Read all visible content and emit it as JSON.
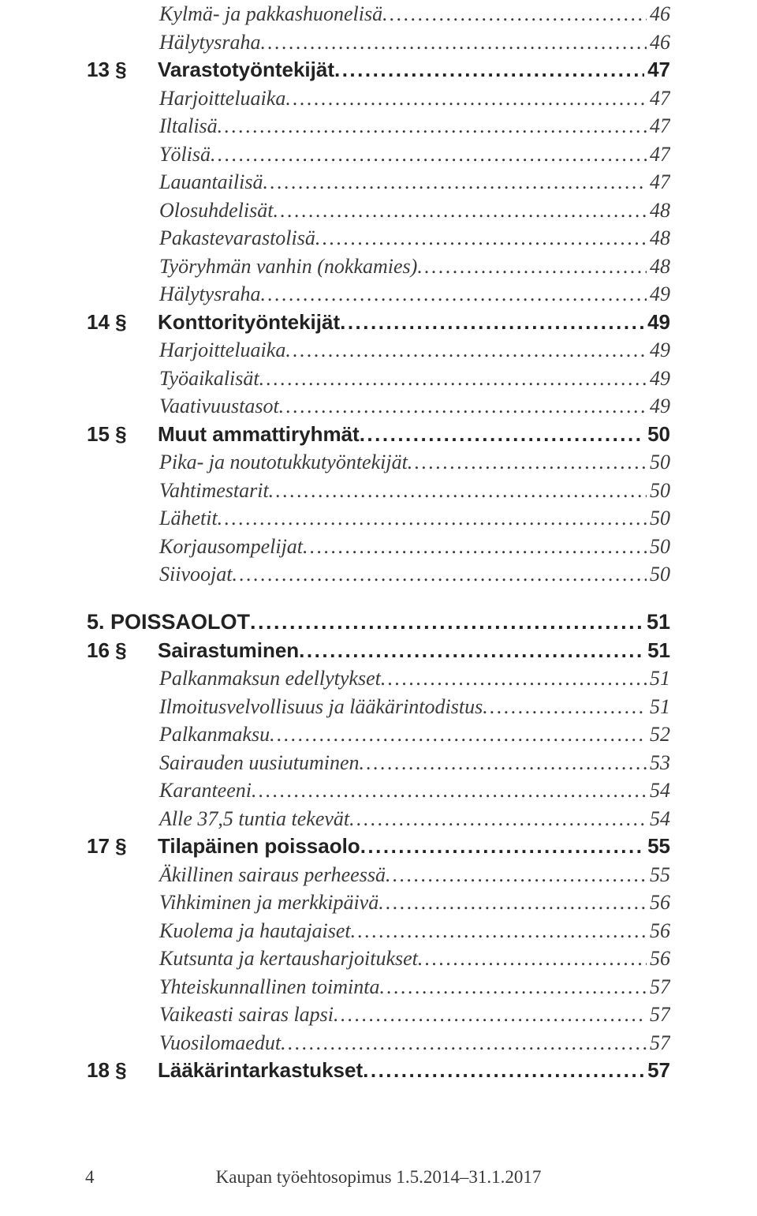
{
  "footer": {
    "pagenum": "4",
    "text": "Kaupan työehtosopimus 1.5.2014–31.1.2017"
  },
  "toc": [
    {
      "kind": "sub",
      "label": "Kylmä- ja pakkashuonelisä",
      "page": "46"
    },
    {
      "kind": "sub",
      "label": "Hälytysraha",
      "page": "46"
    },
    {
      "kind": "sec",
      "num": "13 §",
      "label": "Varastotyöntekijät",
      "page": "47"
    },
    {
      "kind": "sub",
      "label": "Harjoitteluaika",
      "page": "47"
    },
    {
      "kind": "sub",
      "label": "Iltalisä",
      "page": "47"
    },
    {
      "kind": "sub",
      "label": "Yölisä",
      "page": "47"
    },
    {
      "kind": "sub",
      "label": "Lauantailisä",
      "page": "47"
    },
    {
      "kind": "sub",
      "label": "Olosuhdelisät",
      "page": "48"
    },
    {
      "kind": "sub",
      "label": "Pakastevarastolisä",
      "page": "48"
    },
    {
      "kind": "sub",
      "label": "Työryhmän vanhin (nokkamies)",
      "page": "48"
    },
    {
      "kind": "sub",
      "label": "Hälytysraha",
      "page": "49"
    },
    {
      "kind": "sec",
      "num": "14 §",
      "label": "Konttorityöntekijät",
      "page": "49"
    },
    {
      "kind": "sub",
      "label": "Harjoitteluaika",
      "page": "49"
    },
    {
      "kind": "sub",
      "label": "Työaikalisät",
      "page": "49"
    },
    {
      "kind": "sub",
      "label": "Vaativuustasot",
      "page": "49"
    },
    {
      "kind": "sec",
      "num": "15 §",
      "label": "Muut ammattiryhmät",
      "page": "50"
    },
    {
      "kind": "sub",
      "label": "Pika- ja noutotukkutyöntekijät",
      "page": "50"
    },
    {
      "kind": "sub",
      "label": "Vahtimestarit",
      "page": "50"
    },
    {
      "kind": "sub",
      "label": "Lähetit",
      "page": "50"
    },
    {
      "kind": "sub",
      "label": "Korjausompelijat",
      "page": "50"
    },
    {
      "kind": "sub",
      "label": "Siivoojat",
      "page": "50"
    },
    {
      "kind": "chap",
      "label": "5. POISSAOLOT",
      "page": "51"
    },
    {
      "kind": "sec",
      "num": "16 §",
      "label": "Sairastuminen",
      "page": "51"
    },
    {
      "kind": "sub",
      "label": "Palkanmaksun edellytykset",
      "page": "51"
    },
    {
      "kind": "sub",
      "label": "Ilmoitusvelvollisuus ja lääkärintodistus",
      "page": "51"
    },
    {
      "kind": "sub",
      "label": "Palkanmaksu",
      "page": "52"
    },
    {
      "kind": "sub",
      "label": "Sairauden uusiutuminen",
      "page": "53"
    },
    {
      "kind": "sub",
      "label": "Karanteeni",
      "page": "54"
    },
    {
      "kind": "sub",
      "label": "Alle 37,5 tuntia tekevät",
      "page": "54"
    },
    {
      "kind": "sec",
      "num": "17 §",
      "label": "Tilapäinen poissaolo",
      "page": "55"
    },
    {
      "kind": "sub",
      "label": "Äkillinen sairaus perheessä",
      "page": "55"
    },
    {
      "kind": "sub",
      "label": "Vihkiminen ja merkkipäivä",
      "page": "56"
    },
    {
      "kind": "sub",
      "label": "Kuolema ja hautajaiset",
      "page": "56"
    },
    {
      "kind": "sub",
      "label": "Kutsunta ja kertausharjoitukset",
      "page": "56"
    },
    {
      "kind": "sub",
      "label": "Yhteiskunnallinen toiminta",
      "page": "57"
    },
    {
      "kind": "sub",
      "label": "Vaikeasti sairas lapsi",
      "page": "57"
    },
    {
      "kind": "sub",
      "label": "Vuosilomaedut",
      "page": "57"
    },
    {
      "kind": "sec",
      "num": "18 §",
      "label": "Lääkärintarkastukset",
      "page": "57"
    }
  ]
}
